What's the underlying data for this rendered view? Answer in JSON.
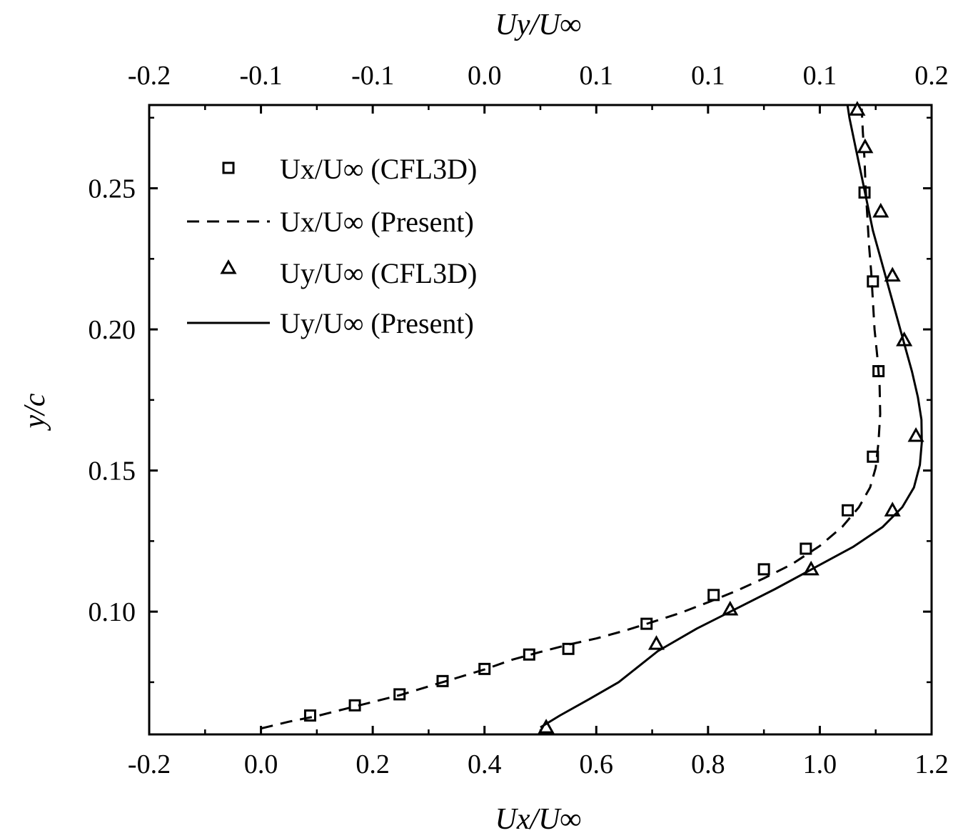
{
  "chart_data": {
    "type": "line",
    "xlabel": "Ux/U∞",
    "x2label": "Uy/U∞",
    "ylabel": "y/c",
    "xlim": [
      -0.2,
      1.2
    ],
    "ylim": [
      0.0565,
      0.2795
    ],
    "x2lim": [
      -0.2,
      0.2
    ],
    "x_ticks": [
      "-0.2",
      "0.0",
      "0.2",
      "0.4",
      "0.6",
      "0.8",
      "1.0",
      "1.2"
    ],
    "x2_ticks": [
      "-0.2",
      "-0.1",
      "-0.1",
      "0.0",
      "0.1",
      "0.1",
      "0.1",
      "0.2"
    ],
    "y_ticks": [
      "0.10",
      "0.15",
      "0.20",
      "0.25"
    ],
    "legend_position": "top-left",
    "legend": [
      "Ux/U∞ (CFL3D)",
      "Ux/U∞ (Present)",
      "Uy/U∞ (CFL3D)",
      "Uy/U∞ (Present)"
    ],
    "series": [
      {
        "name": "Ux/U∞ (CFL3D)",
        "axis": "bottom",
        "style": "square-marker",
        "points": [
          [
            0.088,
            0.0632
          ],
          [
            0.168,
            0.0668
          ],
          [
            0.248,
            0.0707
          ],
          [
            0.325,
            0.0754
          ],
          [
            0.4,
            0.0797
          ],
          [
            0.48,
            0.0848
          ],
          [
            0.55,
            0.0868
          ],
          [
            0.69,
            0.0957
          ],
          [
            0.81,
            0.1059
          ],
          [
            0.9,
            0.115
          ],
          [
            0.975,
            0.1223
          ],
          [
            1.05,
            0.1359
          ],
          [
            1.095,
            0.1549
          ],
          [
            1.105,
            0.1852
          ],
          [
            1.095,
            0.217
          ],
          [
            1.08,
            0.2485
          ]
        ]
      },
      {
        "name": "Ux/U∞ (Present)",
        "axis": "bottom",
        "style": "dashed",
        "points": [
          [
            0.0,
            0.0586
          ],
          [
            0.05,
            0.061
          ],
          [
            0.1,
            0.063
          ],
          [
            0.15,
            0.0655
          ],
          [
            0.2,
            0.068
          ],
          [
            0.25,
            0.0705
          ],
          [
            0.3,
            0.0735
          ],
          [
            0.35,
            0.0765
          ],
          [
            0.4,
            0.0795
          ],
          [
            0.45,
            0.083
          ],
          [
            0.5,
            0.0857
          ],
          [
            0.55,
            0.0883
          ],
          [
            0.6,
            0.0905
          ],
          [
            0.65,
            0.0932
          ],
          [
            0.7,
            0.0963
          ],
          [
            0.75,
            0.0995
          ],
          [
            0.8,
            0.1033
          ],
          [
            0.85,
            0.1073
          ],
          [
            0.9,
            0.1118
          ],
          [
            0.95,
            0.1168
          ],
          [
            1.0,
            0.1233
          ],
          [
            1.04,
            0.13
          ],
          [
            1.07,
            0.137
          ],
          [
            1.09,
            0.144
          ],
          [
            1.1,
            0.151
          ],
          [
            1.105,
            0.16
          ],
          [
            1.108,
            0.17
          ],
          [
            1.107,
            0.18
          ],
          [
            1.103,
            0.19
          ],
          [
            1.098,
            0.2
          ],
          [
            1.095,
            0.21
          ],
          [
            1.092,
            0.22
          ],
          [
            1.088,
            0.23
          ],
          [
            1.085,
            0.24
          ],
          [
            1.082,
            0.25
          ],
          [
            1.08,
            0.26
          ],
          [
            1.077,
            0.27
          ],
          [
            1.075,
            0.2782
          ]
        ]
      },
      {
        "name": "Uy/U∞ (CFL3D)",
        "axis": "top",
        "style": "triangle-marker",
        "points": [
          [
            0.00296,
            0.059
          ],
          [
            0.0593,
            0.0886
          ],
          [
            0.097,
            0.1008
          ],
          [
            0.1384,
            0.115
          ],
          [
            0.18,
            0.1359
          ],
          [
            0.192,
            0.1623
          ],
          [
            0.186,
            0.1962
          ],
          [
            0.18,
            0.2191
          ],
          [
            0.174,
            0.2418
          ],
          [
            0.166,
            0.2646
          ],
          [
            0.162,
            0.2779
          ]
        ]
      },
      {
        "name": "Uy/U∞ (Present)",
        "axis": "top",
        "style": "solid",
        "points": [
          [
            0.0,
            0.059
          ],
          [
            0.01,
            0.0632
          ],
          [
            0.025,
            0.069
          ],
          [
            0.04,
            0.075
          ],
          [
            0.06,
            0.086
          ],
          [
            0.08,
            0.094
          ],
          [
            0.1,
            0.101
          ],
          [
            0.12,
            0.108
          ],
          [
            0.14,
            0.1155
          ],
          [
            0.16,
            0.123
          ],
          [
            0.175,
            0.13
          ],
          [
            0.185,
            0.137
          ],
          [
            0.191,
            0.144
          ],
          [
            0.194,
            0.152
          ],
          [
            0.195,
            0.16
          ],
          [
            0.1948,
            0.168
          ],
          [
            0.193,
            0.176
          ],
          [
            0.19,
            0.185
          ],
          [
            0.186,
            0.195
          ],
          [
            0.182,
            0.205
          ],
          [
            0.178,
            0.215
          ],
          [
            0.174,
            0.225
          ],
          [
            0.17,
            0.235
          ],
          [
            0.167,
            0.245
          ],
          [
            0.164,
            0.255
          ],
          [
            0.161,
            0.265
          ],
          [
            0.158,
            0.275
          ],
          [
            0.157,
            0.2795
          ]
        ]
      }
    ]
  }
}
